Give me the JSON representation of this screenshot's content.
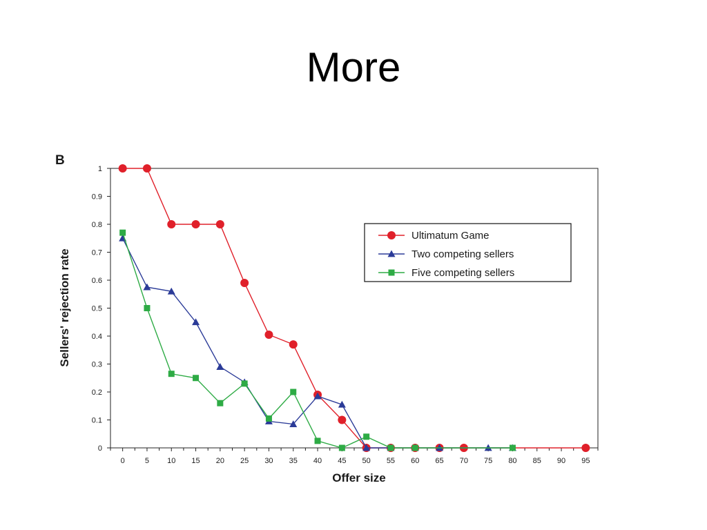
{
  "slide": {
    "title": "More"
  },
  "chart_data": {
    "type": "line",
    "panel_label": "B",
    "xlabel": "Offer size",
    "ylabel": "Sellers' rejection rate",
    "x_ticks": [
      0,
      5,
      10,
      15,
      20,
      25,
      30,
      35,
      40,
      45,
      50,
      55,
      60,
      65,
      70,
      75,
      80,
      85,
      90,
      95
    ],
    "y_ticks": [
      "0",
      "0.1",
      "0.2",
      "0.3",
      "0.4",
      "0.5",
      "0.6",
      "0.7",
      "0.8",
      "0.9",
      "1"
    ],
    "xlim": [
      -2.5,
      97.5
    ],
    "ylim": [
      0,
      1
    ],
    "grid": false,
    "legend_position": "upper-right",
    "series": [
      {
        "name": "Ultimatum Game",
        "color": "#e0202a",
        "marker": "circle",
        "x": [
          0,
          5,
          10,
          15,
          20,
          25,
          30,
          35,
          40,
          45,
          50,
          55,
          60,
          65,
          70,
          95
        ],
        "y": [
          1.0,
          1.0,
          0.8,
          0.8,
          0.8,
          0.59,
          0.405,
          0.37,
          0.19,
          0.1,
          0.0,
          0.0,
          0.0,
          0.0,
          0.0,
          0.0
        ]
      },
      {
        "name": "Two competing sellers",
        "color": "#2b3b98",
        "marker": "triangle",
        "x": [
          0,
          5,
          10,
          15,
          20,
          25,
          30,
          35,
          40,
          45,
          50,
          55,
          60,
          65,
          75,
          80
        ],
        "y": [
          0.75,
          0.575,
          0.56,
          0.45,
          0.29,
          0.235,
          0.095,
          0.085,
          0.185,
          0.155,
          0.0,
          0.0,
          0.0,
          0.0,
          0.0,
          0.0
        ]
      },
      {
        "name": "Five competing sellers",
        "color": "#2eab45",
        "marker": "square",
        "x": [
          0,
          5,
          10,
          15,
          20,
          25,
          30,
          35,
          40,
          45,
          50,
          55,
          60,
          80
        ],
        "y": [
          0.77,
          0.5,
          0.265,
          0.25,
          0.16,
          0.23,
          0.105,
          0.2,
          0.025,
          0.0,
          0.04,
          0.0,
          0.0,
          0.0
        ]
      }
    ]
  }
}
